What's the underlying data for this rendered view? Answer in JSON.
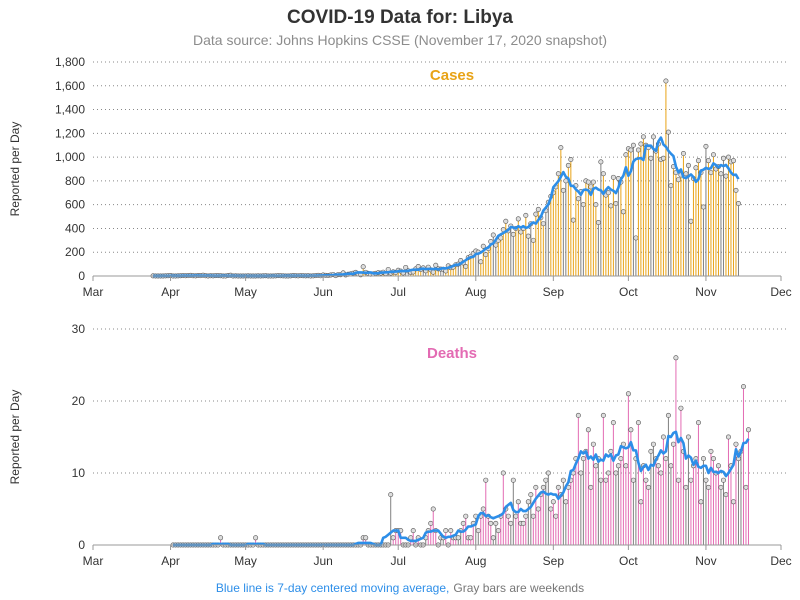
{
  "page": {
    "title": "COVID-19 Data for: Libya",
    "subtitle": "Data source: Johns Hopkins CSSE (November 17, 2020 snapshot)",
    "footnote_blue": "Blue line is 7-day centered moving average,",
    "footnote_gray": "Gray bars are weekends"
  },
  "colors": {
    "cases": "#e8a317",
    "deaths": "#e36bb3",
    "weekend": "#808080",
    "moving_average": "#2d8ee8",
    "axis": "#999999",
    "grid": "#888888"
  },
  "chart_data": [
    {
      "type": "bar",
      "title": "Cases",
      "ylabel": "Reported per Day",
      "ylim": [
        0,
        1800
      ],
      "yticks": [
        0,
        200,
        400,
        600,
        800,
        1000,
        1200,
        1400,
        1600,
        1800
      ],
      "ytick_labels": [
        "0",
        "200",
        "400",
        "600",
        "800",
        "1,000",
        "1,200",
        "1,400",
        "1,600",
        "1,800"
      ],
      "x_range": [
        "2020-03-01",
        "2020-12-01"
      ],
      "xticks": [
        "2020-03-01",
        "2020-04-01",
        "2020-05-01",
        "2020-06-01",
        "2020-07-01",
        "2020-08-01",
        "2020-09-01",
        "2020-10-01",
        "2020-11-01",
        "2020-12-01"
      ],
      "xtick_labels": [
        "Mar",
        "Apr",
        "May",
        "Jun",
        "Jul",
        "Aug",
        "Sep",
        "Oct",
        "Nov",
        "Dec"
      ],
      "grid": true,
      "start_date": "2020-03-25",
      "series_name": "Cases",
      "values": [
        1,
        0,
        0,
        0,
        0,
        1,
        2,
        4,
        0,
        0,
        1,
        2,
        3,
        2,
        3,
        5,
        2,
        1,
        4,
        3,
        6,
        2,
        0,
        2,
        1,
        3,
        3,
        2,
        0,
        0,
        4,
        6,
        0,
        1,
        0,
        0,
        0,
        0,
        1,
        0,
        0,
        0,
        1,
        0,
        1,
        2,
        0,
        0,
        0,
        1,
        3,
        2,
        1,
        0,
        0,
        1,
        4,
        2,
        1,
        3,
        2,
        1,
        2,
        0,
        1,
        3,
        5,
        2,
        8,
        5,
        4,
        8,
        12,
        3,
        12,
        11,
        26,
        9,
        15,
        18,
        23,
        30,
        18,
        10,
        78,
        31,
        22,
        15,
        18,
        22,
        27,
        24,
        32,
        21,
        55,
        24,
        35,
        30,
        48,
        41,
        25,
        72,
        43,
        30,
        34,
        60,
        80,
        55,
        68,
        43,
        74,
        52,
        32,
        90,
        60,
        58,
        57,
        42,
        85,
        70,
        75,
        95,
        100,
        130,
        110,
        80,
        155,
        166,
        190,
        210,
        201,
        120,
        250,
        180,
        230,
        290,
        345,
        260,
        300,
        320,
        390,
        460,
        380,
        420,
        350,
        400,
        480,
        370,
        400,
        510,
        335,
        440,
        300,
        520,
        560,
        490,
        440,
        550,
        620,
        670,
        700,
        750,
        860,
        1080,
        720,
        800,
        930,
        980,
        470,
        760,
        650,
        710,
        600,
        800,
        790,
        750,
        790,
        600,
        450,
        960,
        860,
        680,
        700,
        590,
        830,
        610,
        820,
        790,
        540,
        1020,
        1070,
        1060,
        1100,
        320,
        1060,
        1110,
        1170,
        1100,
        1080,
        990,
        1170,
        1050,
        1110,
        980,
        990,
        1640,
        1210,
        760,
        920,
        870,
        810,
        850,
        1030,
        860,
        930,
        460,
        820,
        910,
        970,
        870,
        580,
        1090,
        970,
        870,
        1020,
        900,
        920,
        860,
        990,
        840,
        1000,
        960,
        970,
        720,
        610
      ]
    },
    {
      "type": "bar",
      "title": "Deaths",
      "ylabel": "Reported per Day",
      "ylim": [
        0,
        30
      ],
      "yticks": [
        0,
        10,
        20,
        30
      ],
      "ytick_labels": [
        "0",
        "10",
        "20",
        "30"
      ],
      "x_range": [
        "2020-03-01",
        "2020-12-01"
      ],
      "xticks": [
        "2020-03-01",
        "2020-04-01",
        "2020-05-01",
        "2020-06-01",
        "2020-07-01",
        "2020-08-01",
        "2020-09-01",
        "2020-10-01",
        "2020-11-01",
        "2020-12-01"
      ],
      "xtick_labels": [
        "Mar",
        "Apr",
        "May",
        "Jun",
        "Jul",
        "Aug",
        "Sep",
        "Oct",
        "Nov",
        "Dec"
      ],
      "grid": true,
      "start_date": "2020-04-02",
      "series_name": "Deaths",
      "values": [
        0,
        0,
        0,
        0,
        0,
        0,
        0,
        0,
        0,
        0,
        0,
        0,
        0,
        0,
        0,
        0,
        0,
        0,
        0,
        1,
        0,
        0,
        0,
        0,
        0,
        0,
        0,
        0,
        0,
        0,
        0,
        0,
        0,
        1,
        0,
        0,
        0,
        0,
        0,
        0,
        0,
        0,
        0,
        0,
        0,
        0,
        0,
        0,
        0,
        0,
        0,
        0,
        0,
        0,
        0,
        0,
        0,
        0,
        0,
        0,
        0,
        0,
        0,
        0,
        0,
        0,
        0,
        0,
        0,
        0,
        0,
        0,
        0,
        0,
        0,
        0,
        1,
        1,
        0,
        0,
        0,
        0,
        0,
        0,
        0,
        0,
        0,
        7,
        1,
        2,
        2,
        2,
        0,
        0,
        0,
        1,
        2,
        0,
        1,
        0,
        0,
        1,
        2,
        3,
        5,
        2,
        0,
        1,
        1,
        2,
        0,
        2,
        1,
        1,
        1,
        2,
        3,
        4,
        1,
        1,
        3,
        4,
        2,
        4,
        5,
        9,
        4,
        3,
        1,
        3,
        2,
        4,
        10,
        5,
        4,
        3,
        9,
        4,
        6,
        3,
        3,
        4,
        6,
        7,
        4,
        8,
        5,
        7,
        8,
        9,
        10,
        5,
        6,
        4,
        8,
        7,
        9,
        6,
        8,
        9,
        10,
        12,
        18,
        10,
        12,
        13,
        16,
        8,
        14,
        11,
        12,
        9,
        18,
        9,
        10,
        13,
        17,
        10,
        11,
        12,
        14,
        11,
        21,
        16,
        9,
        12,
        17,
        6,
        11,
        9,
        8,
        13,
        14,
        12,
        11,
        10,
        15,
        12,
        18,
        11,
        14,
        26,
        9,
        19,
        13,
        8,
        15,
        9,
        11,
        12,
        17,
        6,
        12,
        9,
        8,
        13,
        12,
        10,
        11,
        8,
        9,
        7,
        15,
        11,
        6,
        14,
        12,
        13,
        22,
        8,
        16
      ]
    }
  ]
}
